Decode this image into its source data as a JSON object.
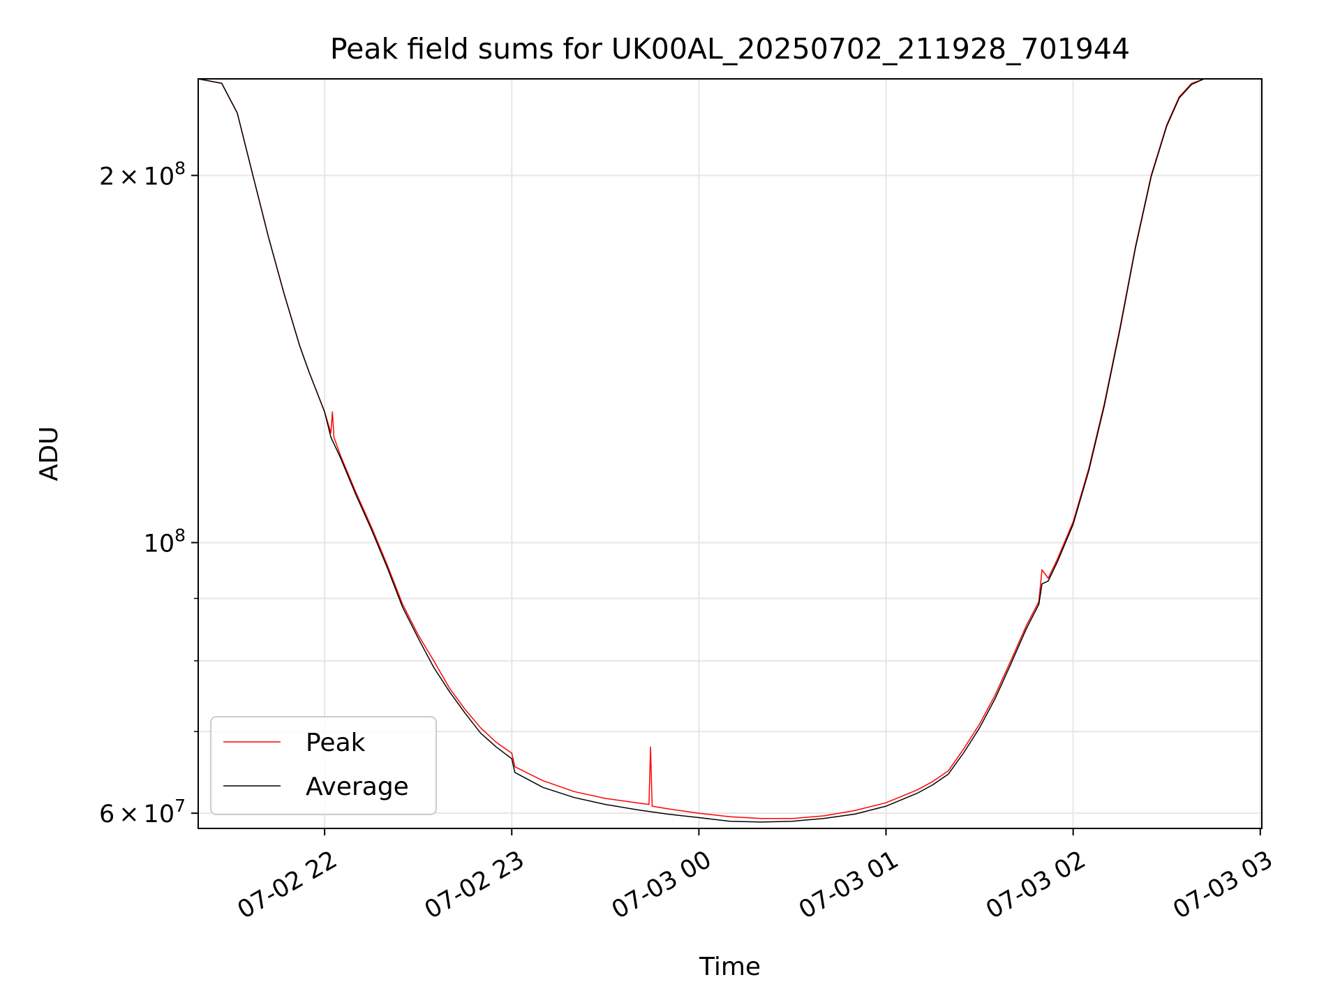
{
  "chart_data": {
    "type": "line",
    "title": "Peak field sums for UK00AL_20250702_211928_701944",
    "xlabel": "Time",
    "ylabel": "ADU",
    "x_scale": "time",
    "y_scale": "log",
    "xlim": [
      "2025-07-02 21:19:28",
      "2025-07-03 03:00:30"
    ],
    "ylim": [
      58300000,
      240000000
    ],
    "grid": true,
    "legend_position": "lower-left",
    "x_ticks": [
      {
        "value": "2025-07-02 22:00",
        "label": "07-02 22"
      },
      {
        "value": "2025-07-02 23:00",
        "label": "07-02 23"
      },
      {
        "value": "2025-07-03 00:00",
        "label": "07-03 00"
      },
      {
        "value": "2025-07-03 01:00",
        "label": "07-03 01"
      },
      {
        "value": "2025-07-03 02:00",
        "label": "07-03 02"
      },
      {
        "value": "2025-07-03 03:00",
        "label": "07-03 03"
      }
    ],
    "y_ticks_major": [
      {
        "value": 200000000,
        "mant": "2",
        "times": "×",
        "base": "10",
        "exp": "8"
      },
      {
        "value": 100000000,
        "mant": "",
        "times": "",
        "base": "10",
        "exp": "8"
      },
      {
        "value": 60000000,
        "mant": "6",
        "times": "×",
        "base": "10",
        "exp": "7"
      }
    ],
    "y_ticks_minor": [
      70000000,
      80000000,
      90000000
    ],
    "series": [
      {
        "name": "Peak",
        "color": "#ff0000",
        "x": [
          "2025-07-02 21:19:28",
          "2025-07-02 21:27",
          "2025-07-02 21:32",
          "2025-07-02 21:37",
          "2025-07-02 21:42",
          "2025-07-02 21:47",
          "2025-07-02 21:52",
          "2025-07-02 21:55",
          "2025-07-02 22:00",
          "2025-07-02 22:02",
          "2025-07-02 22:02:30",
          "2025-07-02 22:03",
          "2025-07-02 22:05",
          "2025-07-02 22:10",
          "2025-07-02 22:15",
          "2025-07-02 22:20",
          "2025-07-02 22:25",
          "2025-07-02 22:30",
          "2025-07-02 22:35",
          "2025-07-02 22:40",
          "2025-07-02 22:45",
          "2025-07-02 22:50",
          "2025-07-02 22:55",
          "2025-07-02 23:00",
          "2025-07-02 23:01",
          "2025-07-02 23:10",
          "2025-07-02 23:20",
          "2025-07-02 23:30",
          "2025-07-02 23:40",
          "2025-07-02 23:44",
          "2025-07-02 23:44:30",
          "2025-07-02 23:45",
          "2025-07-02 23:50",
          "2025-07-03 00:00",
          "2025-07-03 00:10",
          "2025-07-03 00:20",
          "2025-07-03 00:30",
          "2025-07-03 00:40",
          "2025-07-03 00:50",
          "2025-07-03 01:00",
          "2025-07-03 01:10",
          "2025-07-03 01:15",
          "2025-07-03 01:20",
          "2025-07-03 01:25",
          "2025-07-03 01:30",
          "2025-07-03 01:35",
          "2025-07-03 01:40",
          "2025-07-03 01:45",
          "2025-07-03 01:49",
          "2025-07-03 01:50",
          "2025-07-03 01:52",
          "2025-07-03 01:55",
          "2025-07-03 02:00",
          "2025-07-03 02:05",
          "2025-07-03 02:10",
          "2025-07-03 02:15",
          "2025-07-03 02:20",
          "2025-07-03 02:25",
          "2025-07-03 02:30",
          "2025-07-03 02:34",
          "2025-07-03 02:38",
          "2025-07-03 02:42",
          "2025-07-03 02:44",
          "2025-07-03 03:00:30"
        ],
        "y": [
          240000000,
          238000000,
          225000000,
          200000000,
          178000000,
          160000000,
          145000000,
          138000000,
          128000000,
          123000000,
          128000000,
          122000000,
          118000000,
          110000000,
          103000000,
          96000000,
          89000000,
          84000000,
          80000000,
          76000000,
          73000000,
          70500000,
          68600000,
          67200000,
          65500000,
          63800000,
          62500000,
          61700000,
          61200000,
          61000000,
          68000000,
          60800000,
          60500000,
          60000000,
          59600000,
          59400000,
          59400000,
          59700000,
          60300000,
          61200000,
          62700000,
          63700000,
          65000000,
          67800000,
          71000000,
          75000000,
          80000000,
          85500000,
          89500000,
          95000000,
          93500000,
          97000000,
          104000000,
          115000000,
          130000000,
          150000000,
          175000000,
          200000000,
          220000000,
          232000000,
          238000000,
          240000000,
          240000000,
          240000000
        ]
      },
      {
        "name": "Average",
        "color": "#000000",
        "x": [
          "2025-07-02 21:19:28",
          "2025-07-02 21:27",
          "2025-07-02 21:32",
          "2025-07-02 21:37",
          "2025-07-02 21:42",
          "2025-07-02 21:47",
          "2025-07-02 21:52",
          "2025-07-02 21:55",
          "2025-07-02 22:00",
          "2025-07-02 22:02",
          "2025-07-02 22:05",
          "2025-07-02 22:10",
          "2025-07-02 22:15",
          "2025-07-02 22:20",
          "2025-07-02 22:25",
          "2025-07-02 22:30",
          "2025-07-02 22:35",
          "2025-07-02 22:40",
          "2025-07-02 22:45",
          "2025-07-02 22:50",
          "2025-07-02 22:55",
          "2025-07-02 23:00",
          "2025-07-02 23:01",
          "2025-07-02 23:10",
          "2025-07-02 23:20",
          "2025-07-02 23:30",
          "2025-07-02 23:40",
          "2025-07-02 23:50",
          "2025-07-03 00:00",
          "2025-07-03 00:10",
          "2025-07-03 00:20",
          "2025-07-03 00:30",
          "2025-07-03 00:40",
          "2025-07-03 00:50",
          "2025-07-03 01:00",
          "2025-07-03 01:10",
          "2025-07-03 01:15",
          "2025-07-03 01:20",
          "2025-07-03 01:25",
          "2025-07-03 01:30",
          "2025-07-03 01:35",
          "2025-07-03 01:40",
          "2025-07-03 01:45",
          "2025-07-03 01:49",
          "2025-07-03 01:50",
          "2025-07-03 01:52",
          "2025-07-03 01:55",
          "2025-07-03 02:00",
          "2025-07-03 02:05",
          "2025-07-03 02:10",
          "2025-07-03 02:15",
          "2025-07-03 02:20",
          "2025-07-03 02:25",
          "2025-07-03 02:30",
          "2025-07-03 02:34",
          "2025-07-03 02:38",
          "2025-07-03 02:42",
          "2025-07-03 02:44",
          "2025-07-03 03:00:30"
        ],
        "y": [
          240000000,
          238000000,
          225000000,
          200000000,
          178000000,
          160000000,
          145000000,
          138000000,
          128000000,
          122000000,
          117500000,
          109500000,
          102500000,
          95500000,
          88500000,
          83500000,
          79000000,
          75500000,
          72500000,
          69800000,
          68000000,
          66500000,
          64800000,
          63000000,
          61800000,
          61000000,
          60400000,
          59900000,
          59500000,
          59100000,
          59000000,
          59100000,
          59400000,
          59900000,
          60800000,
          62300000,
          63300000,
          64600000,
          67300000,
          70500000,
          74500000,
          79500000,
          85000000,
          89000000,
          92500000,
          93000000,
          96500000,
          103500000,
          114500000,
          129500000,
          149500000,
          174500000,
          199500000,
          219500000,
          231500000,
          237500000,
          240000000,
          240000000,
          240000000
        ]
      }
    ]
  }
}
